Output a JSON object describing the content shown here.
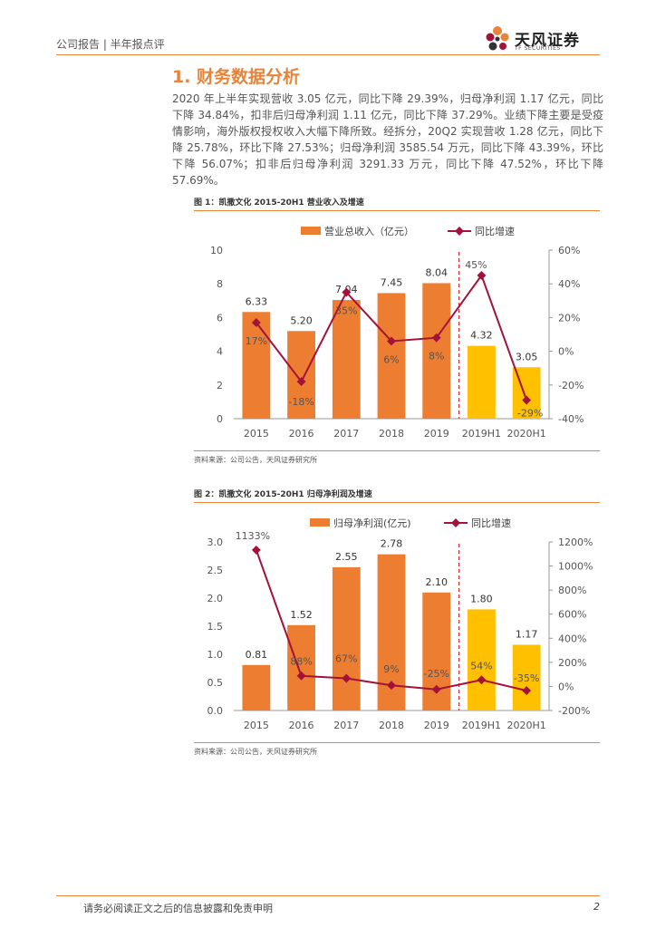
{
  "header": {
    "left": "公司报告 | 半年报点评",
    "logo_name": "天风证券",
    "logo_sub": "TF SECURITIES"
  },
  "section": {
    "title": "1. 财务数据分析",
    "paragraph": "2020 年上半年实现营收 3.05 亿元，同比下降 29.39%，归母净利润 1.17 亿元，同比下降 34.84%，扣非后归母净利润 1.11 亿元，同比下降 37.29%。业绩下降主要是受疫情影响，海外版权授权收入大幅下降所致。经拆分，20Q2 实现营收 1.28 亿元，同比下降 25.78%，环比下降 27.53%；归母净利润 3585.54 万元，同比下降 43.39%，环比下降 56.07%；扣非后归母净利润 3291.33 万元，同比下降 47.52%，环比下降 57.69%。"
  },
  "figure1": {
    "caption": "图 1：凯撒文化 2015-20H1 营业收入及增速",
    "source": "资料来源：公司公告，天风证券研究所"
  },
  "figure2": {
    "caption": "图 2：凯撒文化 2015-20H1 归母净利润及增速",
    "source": "资料来源：公司公告，天风证券研究所"
  },
  "footer": {
    "disclaimer": "请务必阅读正文之后的信息披露和免责申明",
    "page": "2"
  },
  "colors": {
    "accent": "#e8833a",
    "bar_annual": "#ed7d31",
    "bar_half": "#ffc000",
    "line": "#a3123a"
  },
  "chart_data": [
    {
      "type": "bar",
      "categories": [
        "2015",
        "2016",
        "2017",
        "2018",
        "2019",
        "2019H1",
        "2020H1"
      ],
      "series": [
        {
          "name": "营业总收入（亿元）",
          "type": "bar",
          "axis": "left",
          "values": [
            6.33,
            5.2,
            7.04,
            7.45,
            8.04,
            4.32,
            3.05
          ],
          "labels": [
            "6.33",
            "5.20",
            "7.04",
            "7.45",
            "8.04",
            "4.32",
            "3.05"
          ]
        },
        {
          "name": "同比增速",
          "type": "line",
          "axis": "right",
          "values": [
            17,
            -18,
            35,
            6,
            8,
            45,
            -29
          ],
          "labels": [
            "17%",
            "-18%",
            "35%",
            "6%",
            "8%",
            "45%",
            "-29%"
          ]
        }
      ],
      "y_left": {
        "min": 0,
        "max": 10,
        "ticks": [
          "0",
          "2",
          "4",
          "6",
          "8",
          "10"
        ]
      },
      "y_right": {
        "min": -40,
        "max": 60,
        "ticks": [
          "-40%",
          "-20%",
          "0%",
          "20%",
          "40%",
          "60%"
        ]
      },
      "legend": "top"
    },
    {
      "type": "bar",
      "categories": [
        "2015",
        "2016",
        "2017",
        "2018",
        "2019",
        "2019H1",
        "2020H1"
      ],
      "series": [
        {
          "name": "归母净利润(亿元)",
          "type": "bar",
          "axis": "left",
          "values": [
            0.81,
            1.52,
            2.55,
            2.78,
            2.1,
            1.8,
            1.17
          ],
          "labels": [
            "0.81",
            "1.52",
            "2.55",
            "2.78",
            "2.10",
            "1.80",
            "1.17"
          ]
        },
        {
          "name": "同比增速",
          "type": "line",
          "axis": "right",
          "values": [
            1133,
            88,
            67,
            9,
            -25,
            54,
            -35
          ],
          "labels": [
            "1133%",
            "88%",
            "67%",
            "9%",
            "-25%",
            "54%",
            "-35%"
          ]
        }
      ],
      "y_left": {
        "min": 0,
        "max": 3,
        "ticks": [
          "0.0",
          "0.5",
          "1.0",
          "1.5",
          "2.0",
          "2.5",
          "3.0"
        ]
      },
      "y_right": {
        "min": -200,
        "max": 1200,
        "ticks": [
          "-200%",
          "0%",
          "200%",
          "400%",
          "600%",
          "800%",
          "1000%",
          "1200%"
        ]
      },
      "legend": "top"
    }
  ]
}
